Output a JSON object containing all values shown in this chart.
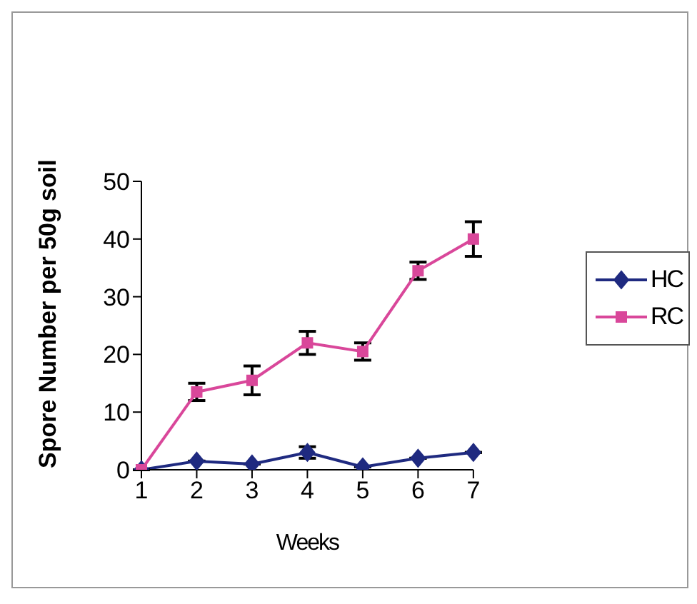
{
  "chart_data": {
    "type": "line",
    "xlabel": "Weeks",
    "ylabel": "Spore Number per 50g soil",
    "categories": [
      "1",
      "2",
      "3",
      "4",
      "5",
      "6",
      "7"
    ],
    "series": [
      {
        "name": "HC",
        "color": "#1f2a80",
        "marker": "diamond",
        "values": [
          0,
          1.5,
          1,
          3,
          0.5,
          2,
          3
        ],
        "errors": [
          null,
          null,
          null,
          1,
          null,
          null,
          null
        ]
      },
      {
        "name": "RC",
        "color": "#d9479a",
        "marker": "square",
        "values": [
          0,
          13.5,
          15.5,
          22,
          20.5,
          34.5,
          40
        ],
        "errors": [
          null,
          1.5,
          2.5,
          2,
          1.5,
          1.5,
          3
        ]
      }
    ],
    "ylim": [
      0,
      50
    ],
    "yticks": [
      0,
      10,
      20,
      30,
      40,
      50
    ],
    "grid": false,
    "legend": "right"
  }
}
